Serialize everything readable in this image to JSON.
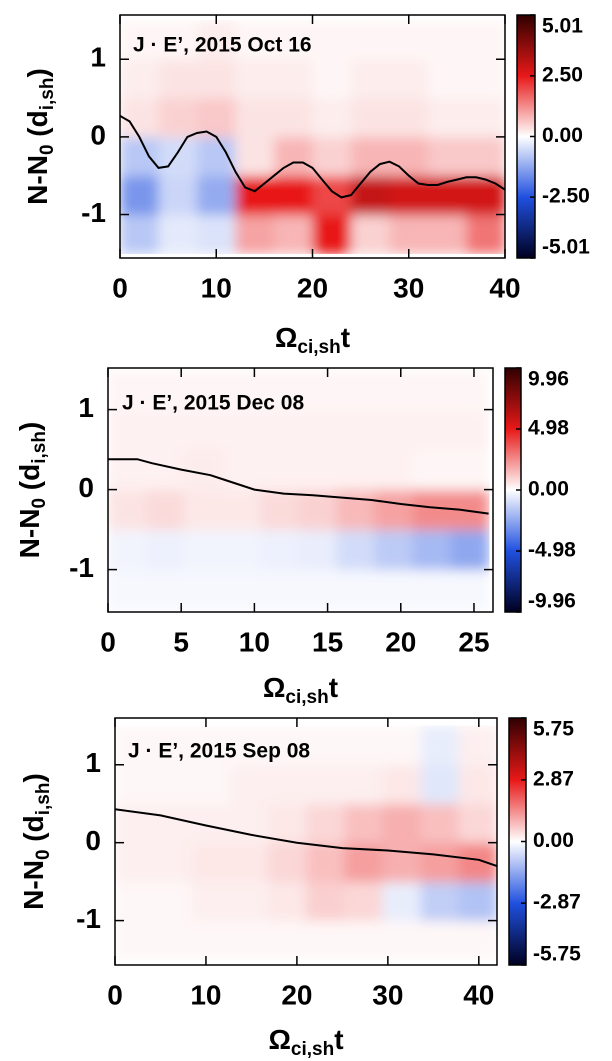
{
  "chart_data": [
    {
      "type": "heatmap",
      "title": "J · E’, 2015 Oct 16",
      "xlabel": [
        "Ω",
        "ci,sh",
        "t"
      ],
      "ylabel": [
        "N-N",
        "0",
        " (d",
        "i,sh",
        ")"
      ],
      "xlim": [
        0,
        40
      ],
      "ylim": [
        -1.56,
        1.57
      ],
      "xticks": [
        0,
        10,
        20,
        30,
        40
      ],
      "yticks": [
        -1,
        0,
        1
      ],
      "heatmap": {
        "xbins": [
          0,
          4,
          8,
          12,
          16,
          20,
          24,
          28,
          32,
          36,
          40
        ],
        "ybins": [
          -1.5,
          -1,
          -0.5,
          0,
          0.5,
          1,
          1.5
        ],
        "z": [
          [
            -0.8,
            -0.3,
            -0.4,
            1.0,
            0.8,
            2.5,
            0.5,
            0.8,
            0.8,
            1.5
          ],
          [
            -1.5,
            -0.6,
            -1.2,
            2.5,
            2.5,
            2.0,
            3.0,
            2.8,
            2.8,
            2.8
          ],
          [
            -0.8,
            -0.5,
            -0.8,
            0.3,
            0.8,
            0.5,
            0.8,
            0.8,
            0.6,
            0.6
          ],
          [
            0.3,
            0.5,
            0.6,
            0.3,
            0.3,
            0.2,
            0.3,
            0.3,
            0.2,
            0.2
          ],
          [
            0.2,
            0.3,
            0.3,
            0.2,
            0.2,
            0.1,
            0.2,
            0.2,
            0.1,
            0.1
          ],
          [
            0.1,
            0.1,
            0.2,
            0.1,
            0.1,
            0.1,
            0.1,
            0.1,
            0.1,
            0.1
          ]
        ]
      },
      "line": {
        "color": "#000000",
        "x": [
          0,
          1,
          2,
          3,
          4,
          5,
          6,
          7,
          8,
          9,
          10,
          11,
          12,
          13,
          14,
          15,
          16,
          17,
          18,
          19,
          20,
          21,
          22,
          23,
          24,
          25,
          26,
          27,
          28,
          29,
          30,
          31,
          32,
          33,
          34,
          35,
          36,
          37,
          38,
          39,
          40
        ],
        "y": [
          0.27,
          0.2,
          0.0,
          -0.25,
          -0.4,
          -0.38,
          -0.2,
          0.0,
          0.05,
          0.07,
          0.0,
          -0.2,
          -0.45,
          -0.65,
          -0.7,
          -0.6,
          -0.5,
          -0.4,
          -0.33,
          -0.33,
          -0.4,
          -0.55,
          -0.7,
          -0.78,
          -0.75,
          -0.6,
          -0.45,
          -0.35,
          -0.32,
          -0.38,
          -0.5,
          -0.6,
          -0.62,
          -0.62,
          -0.58,
          -0.55,
          -0.52,
          -0.52,
          -0.55,
          -0.6,
          -0.68
        ]
      },
      "clim": [
        -5.01,
        5.01
      ],
      "cticks": [
        -5.01,
        {
          "value": -2.5,
          "label": "-2.50"
        },
        {
          "value": 0,
          "label": "0.00"
        },
        {
          "value": 2.5,
          "label": "2.50"
        },
        5.01
      ]
    },
    {
      "type": "heatmap",
      "title": "J · E’, 2015 Dec 08",
      "xlabel": [
        "Ω",
        "ci,sh",
        "t"
      ],
      "ylabel": [
        "N-N",
        "0",
        " (d",
        "i,sh",
        ")"
      ],
      "xlim": [
        0,
        26.3
      ],
      "ylim": [
        -1.53,
        1.52
      ],
      "xticks": [
        0,
        5,
        10,
        15,
        20,
        25
      ],
      "yticks": [
        -1,
        0,
        1
      ],
      "heatmap": {
        "xbins": [
          0,
          2.6,
          5.2,
          7.8,
          10.4,
          13,
          15.6,
          18.2,
          20.8,
          23.4,
          26
        ],
        "ybins": [
          -1.5,
          -1,
          -0.5,
          0,
          0.5,
          1,
          1.5
        ],
        "z": [
          [
            -0.2,
            -0.2,
            -0.2,
            -0.2,
            -0.2,
            -0.2,
            -0.2,
            -0.2,
            -0.2,
            -0.2
          ],
          [
            -0.3,
            -0.4,
            -0.3,
            -0.3,
            -0.4,
            -0.5,
            -1.0,
            -1.5,
            -2.0,
            -2.5
          ],
          [
            0.6,
            0.8,
            0.5,
            0.5,
            0.8,
            1.0,
            1.5,
            2.0,
            2.5,
            2.5
          ],
          [
            0.3,
            0.3,
            0.4,
            0.3,
            0.3,
            0.3,
            0.3,
            0.3,
            0.2,
            0.2
          ],
          [
            0.3,
            0.3,
            0.3,
            0.3,
            0.3,
            0.3,
            0.3,
            0.3,
            0.3,
            0.3
          ],
          [
            0.2,
            0.2,
            0.2,
            0.2,
            0.2,
            0.2,
            0.2,
            0.2,
            0.2,
            0.2
          ]
        ]
      },
      "line": {
        "color": "#000000",
        "x": [
          0,
          2,
          3,
          5,
          7,
          8,
          10,
          12,
          14,
          16,
          18,
          20,
          22,
          24,
          26
        ],
        "y": [
          0.38,
          0.38,
          0.33,
          0.25,
          0.18,
          0.12,
          0.0,
          -0.05,
          -0.07,
          -0.1,
          -0.13,
          -0.18,
          -0.22,
          -0.25,
          -0.3
        ]
      },
      "clim": [
        -9.96,
        9.96
      ],
      "cticks": [
        -9.96,
        -4.98,
        {
          "value": 0,
          "label": "0.00"
        },
        4.98,
        9.96
      ]
    },
    {
      "type": "heatmap",
      "title": "J · E’, 2015 Sep 08",
      "xlabel": [
        "Ω",
        "ci,sh",
        "t"
      ],
      "ylabel": [
        "N-N",
        "0",
        " (d",
        "i,sh",
        ")"
      ],
      "xlim": [
        0,
        42
      ],
      "ylim": [
        -1.57,
        1.6
      ],
      "xticks": [
        0,
        10,
        20,
        30,
        40
      ],
      "yticks": [
        -1,
        0,
        1
      ],
      "heatmap": {
        "xbins": [
          0,
          4.2,
          8.4,
          12.6,
          16.8,
          21,
          25.2,
          29.4,
          33.6,
          37.8,
          42
        ],
        "ybins": [
          -1.5,
          -1,
          -0.5,
          0,
          0.5,
          1,
          1.5
        ],
        "z": [
          [
            0.1,
            0.1,
            0.1,
            0.1,
            0.1,
            0.1,
            0.1,
            0.1,
            0.1,
            0.1
          ],
          [
            0.1,
            0.1,
            0.2,
            0.2,
            0.3,
            0.6,
            0.5,
            -0.3,
            -0.8,
            -1.0
          ],
          [
            0.2,
            0.2,
            0.3,
            0.3,
            0.5,
            0.8,
            1.2,
            1.0,
            1.2,
            1.5
          ],
          [
            0.2,
            0.2,
            0.2,
            0.2,
            0.3,
            0.5,
            0.8,
            1.0,
            0.8,
            0.5
          ],
          [
            0.1,
            0.1,
            0.1,
            0.2,
            0.2,
            0.2,
            0.2,
            0.3,
            -0.4,
            0.3
          ],
          [
            0.1,
            0.1,
            0.1,
            0.1,
            0.1,
            0.1,
            0.1,
            0.1,
            -0.3,
            0.2
          ]
        ]
      },
      "line": {
        "color": "#000000",
        "x": [
          0,
          5,
          10,
          15,
          20,
          25,
          30,
          35,
          40,
          42
        ],
        "y": [
          0.43,
          0.35,
          0.22,
          0.1,
          0.0,
          -0.07,
          -0.1,
          -0.15,
          -0.22,
          -0.3
        ]
      },
      "clim": [
        -5.75,
        5.75
      ],
      "cticks": [
        -5.75,
        -2.87,
        {
          "value": 0,
          "label": "0.00"
        },
        2.87,
        5.75
      ]
    }
  ]
}
